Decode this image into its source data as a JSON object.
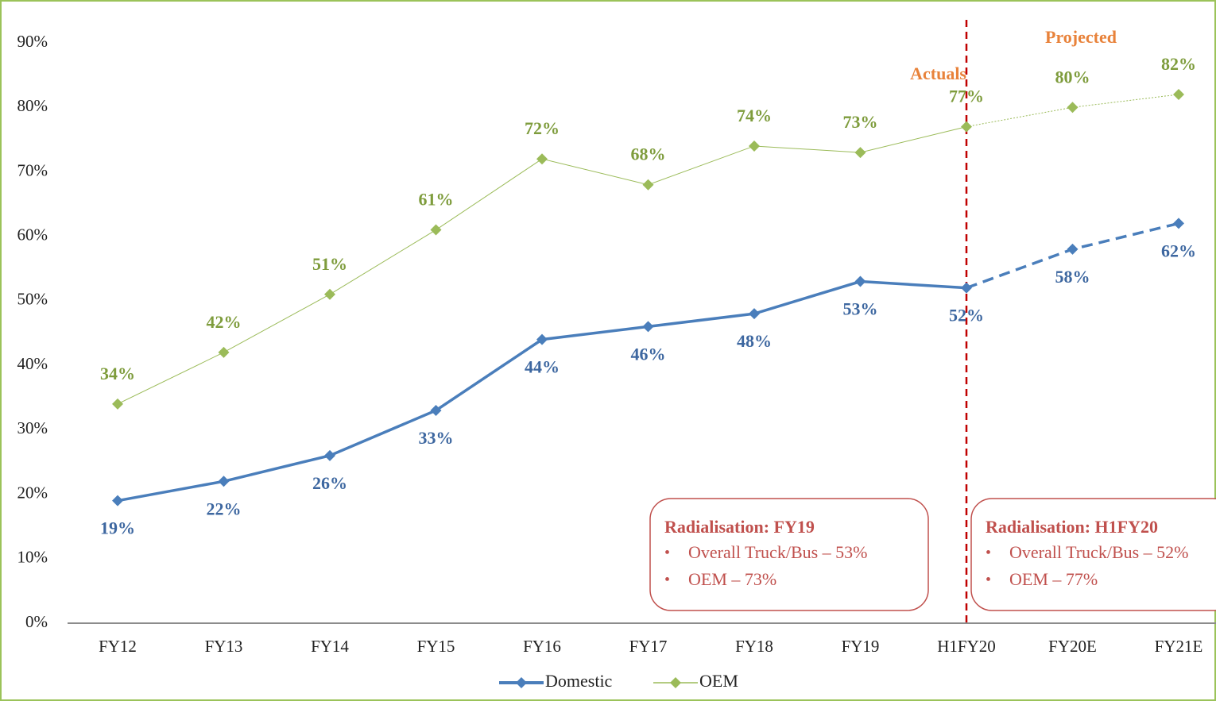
{
  "chart_data": {
    "type": "line",
    "categories": [
      "FY12",
      "FY13",
      "FY14",
      "FY15",
      "FY16",
      "FY17",
      "FY18",
      "FY19",
      "H1FY20",
      "FY20E",
      "FY21E"
    ],
    "dashed_after": "H1FY20",
    "series": [
      {
        "name": "Domestic",
        "color": "#4a7ebb",
        "label_color": "#3d67a0",
        "values": [
          19,
          22,
          26,
          33,
          44,
          46,
          48,
          53,
          52,
          58,
          62
        ],
        "value_labels": [
          "19%",
          "22%",
          "26%",
          "33%",
          "44%",
          "46%",
          "48%",
          "53%",
          "52%",
          "58%",
          "62%"
        ]
      },
      {
        "name": "OEM",
        "color": "#9bbb59",
        "label_color": "#7e9c3c",
        "values": [
          34,
          42,
          51,
          61,
          72,
          68,
          74,
          73,
          77,
          80,
          82
        ],
        "value_labels": [
          "34%",
          "42%",
          "51%",
          "61%",
          "72%",
          "68%",
          "74%",
          "73%",
          "77%",
          "80%",
          "82%"
        ]
      }
    ],
    "ylim": [
      0,
      90
    ],
    "yticks": [
      {
        "value": 0,
        "label": "0%"
      },
      {
        "value": 10,
        "label": "10%"
      },
      {
        "value": 20,
        "label": "20%"
      },
      {
        "value": 30,
        "label": "30%"
      },
      {
        "value": 40,
        "label": "40%"
      },
      {
        "value": 50,
        "label": "50%"
      },
      {
        "value": 60,
        "label": "60%"
      },
      {
        "value": 70,
        "label": "70%"
      },
      {
        "value": 80,
        "label": "80%"
      },
      {
        "value": 90,
        "label": "90%"
      }
    ],
    "annotations": {
      "actuals": "Actuals",
      "projected": "Projected"
    },
    "boxes": [
      {
        "title": "Radialisation: FY19",
        "lines": [
          "Overall Truck/Bus – 53%",
          "OEM – 73%"
        ]
      },
      {
        "title": "Radialisation: H1FY20",
        "lines": [
          "Overall Truck/Bus – 52%",
          "OEM – 77%"
        ]
      }
    ],
    "legend": "bottom"
  }
}
